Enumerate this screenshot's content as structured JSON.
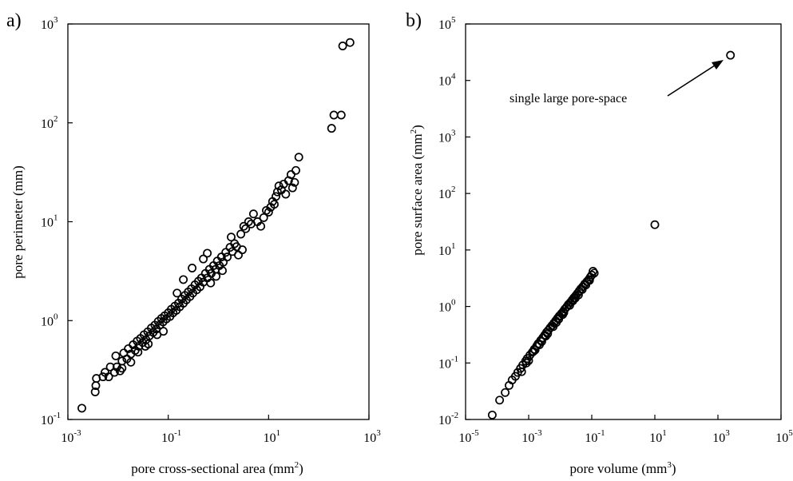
{
  "chart_data": [
    {
      "panel_label": "a)",
      "type": "scatter",
      "xlabel": "pore cross-sectional area (mm",
      "xlabel_sup": "2",
      "xlabel_tail": ")",
      "ylabel": "pore perimeter  (mm)",
      "xscale": "log",
      "yscale": "log",
      "xlim": [
        0.001,
        1000
      ],
      "ylim": [
        0.1,
        1000
      ],
      "x_ticks": [
        {
          "base": "10",
          "exp": "-3",
          "value": 0.001
        },
        {
          "base": "10",
          "exp": "-1",
          "value": 0.1
        },
        {
          "base": "10",
          "exp": "1",
          "value": 10
        },
        {
          "base": "10",
          "exp": "3",
          "value": 1000
        }
      ],
      "y_ticks": [
        {
          "base": "10",
          "exp": "-1",
          "value": 0.1
        },
        {
          "base": "10",
          "exp": "0",
          "value": 1
        },
        {
          "base": "10",
          "exp": "1",
          "value": 10
        },
        {
          "base": "10",
          "exp": "2",
          "value": 100
        },
        {
          "base": "10",
          "exp": "3",
          "value": 1000
        }
      ],
      "marker": "open-circle",
      "grid": false,
      "legend": "none",
      "points": [
        [
          0.0019,
          0.13
        ],
        [
          0.0035,
          0.19
        ],
        [
          0.0036,
          0.22
        ],
        [
          0.0037,
          0.26
        ],
        [
          0.005,
          0.27
        ],
        [
          0.0055,
          0.3
        ],
        [
          0.0065,
          0.27
        ],
        [
          0.007,
          0.34
        ],
        [
          0.0085,
          0.3
        ],
        [
          0.0095,
          0.34
        ],
        [
          0.011,
          0.31
        ],
        [
          0.012,
          0.39
        ],
        [
          0.009,
          0.44
        ],
        [
          0.013,
          0.47
        ],
        [
          0.015,
          0.41
        ],
        [
          0.016,
          0.52
        ],
        [
          0.018,
          0.46
        ],
        [
          0.02,
          0.57
        ],
        [
          0.022,
          0.5
        ],
        [
          0.024,
          0.62
        ],
        [
          0.026,
          0.55
        ],
        [
          0.028,
          0.66
        ],
        [
          0.031,
          0.6
        ],
        [
          0.033,
          0.72
        ],
        [
          0.036,
          0.64
        ],
        [
          0.039,
          0.77
        ],
        [
          0.042,
          0.7
        ],
        [
          0.046,
          0.84
        ],
        [
          0.05,
          0.76
        ],
        [
          0.054,
          0.9
        ],
        [
          0.058,
          0.82
        ],
        [
          0.063,
          0.98
        ],
        [
          0.068,
          0.9
        ],
        [
          0.073,
          1.05
        ],
        [
          0.079,
          0.97
        ],
        [
          0.085,
          1.12
        ],
        [
          0.092,
          1.04
        ],
        [
          0.1,
          1.2
        ],
        [
          0.108,
          1.1
        ],
        [
          0.115,
          1.3
        ],
        [
          0.125,
          1.2
        ],
        [
          0.135,
          1.4
        ],
        [
          0.145,
          1.27
        ],
        [
          0.16,
          1.5
        ],
        [
          0.17,
          1.38
        ],
        [
          0.185,
          1.65
        ],
        [
          0.2,
          1.5
        ],
        [
          0.215,
          1.8
        ],
        [
          0.23,
          1.62
        ],
        [
          0.25,
          1.95
        ],
        [
          0.27,
          1.75
        ],
        [
          0.29,
          2.1
        ],
        [
          0.31,
          1.9
        ],
        [
          0.34,
          2.3
        ],
        [
          0.37,
          2.05
        ],
        [
          0.4,
          2.5
        ],
        [
          0.43,
          2.2
        ],
        [
          0.46,
          2.7
        ],
        [
          0.5,
          2.45
        ],
        [
          0.55,
          3.0
        ],
        [
          0.6,
          2.7
        ],
        [
          0.66,
          3.3
        ],
        [
          0.72,
          3.0
        ],
        [
          0.8,
          3.6
        ],
        [
          0.88,
          3.3
        ],
        [
          0.95,
          4.0
        ],
        [
          1.05,
          3.6
        ],
        [
          1.15,
          4.4
        ],
        [
          1.25,
          3.9
        ],
        [
          1.4,
          4.9
        ],
        [
          1.5,
          4.4
        ],
        [
          1.7,
          5.5
        ],
        [
          1.9,
          5.0
        ],
        [
          2.1,
          6.0
        ],
        [
          2.3,
          5.6
        ],
        [
          0.5,
          4.2
        ],
        [
          0.6,
          4.8
        ],
        [
          1.8,
          7.0
        ],
        [
          2.8,
          7.5
        ],
        [
          3.2,
          9.0
        ],
        [
          3.5,
          8.5
        ],
        [
          4.0,
          10
        ],
        [
          4.5,
          9.5
        ],
        [
          5.0,
          12
        ],
        [
          6.0,
          10
        ],
        [
          7.0,
          9.0
        ],
        [
          8.0,
          11
        ],
        [
          9.0,
          13
        ],
        [
          10,
          12.5
        ],
        [
          11,
          14
        ],
        [
          12,
          16
        ],
        [
          13,
          15
        ],
        [
          14,
          18
        ],
        [
          15,
          20
        ],
        [
          16,
          23
        ],
        [
          18,
          21
        ],
        [
          20,
          24
        ],
        [
          22,
          19
        ],
        [
          25,
          26
        ],
        [
          28,
          30
        ],
        [
          33,
          25
        ],
        [
          35,
          33
        ],
        [
          40,
          45
        ],
        [
          30,
          22
        ],
        [
          0.2,
          2.6
        ],
        [
          0.3,
          3.4
        ],
        [
          0.15,
          1.9
        ],
        [
          0.08,
          0.78
        ],
        [
          0.04,
          0.58
        ],
        [
          0.025,
          0.48
        ],
        [
          0.06,
          0.72
        ],
        [
          0.012,
          0.33
        ],
        [
          0.018,
          0.38
        ],
        [
          0.035,
          0.55
        ],
        [
          0.7,
          2.4
        ],
        [
          0.9,
          2.8
        ],
        [
          1.2,
          3.2
        ],
        [
          2.5,
          4.6
        ],
        [
          3.0,
          5.2
        ],
        [
          300,
          600
        ],
        [
          420,
          650
        ],
        [
          180,
          88
        ],
        [
          200,
          120
        ],
        [
          280,
          120
        ]
      ]
    },
    {
      "panel_label": "b)",
      "type": "scatter",
      "xlabel": "pore volume (mm",
      "xlabel_sup": "3",
      "xlabel_tail": ")",
      "ylabel": "pore surface area (mm",
      "ylabel_sup": "2",
      "ylabel_tail": ")",
      "xscale": "log",
      "yscale": "log",
      "xlim": [
        1e-05,
        100000
      ],
      "ylim": [
        0.01,
        100000
      ],
      "x_ticks": [
        {
          "base": "10",
          "exp": "-5",
          "value": 1e-05
        },
        {
          "base": "10",
          "exp": "-3",
          "value": 0.001
        },
        {
          "base": "10",
          "exp": "-1",
          "value": 0.1
        },
        {
          "base": "10",
          "exp": "1",
          "value": 10
        },
        {
          "base": "10",
          "exp": "3",
          "value": 1000
        },
        {
          "base": "10",
          "exp": "5",
          "value": 100000
        }
      ],
      "y_ticks": [
        {
          "base": "10",
          "exp": "-2",
          "value": 0.01
        },
        {
          "base": "10",
          "exp": "-1",
          "value": 0.1
        },
        {
          "base": "10",
          "exp": "0",
          "value": 1
        },
        {
          "base": "10",
          "exp": "1",
          "value": 10
        },
        {
          "base": "10",
          "exp": "2",
          "value": 100
        },
        {
          "base": "10",
          "exp": "3",
          "value": 1000
        },
        {
          "base": "10",
          "exp": "4",
          "value": 10000
        },
        {
          "base": "10",
          "exp": "5",
          "value": 100000
        }
      ],
      "marker": "open-circle",
      "grid": false,
      "legend": "none",
      "annotation": {
        "text": "single large pore-space",
        "points_to": [
          2500,
          28000
        ]
      },
      "points": [
        [
          7e-05,
          0.012
        ],
        [
          0.00012,
          0.022
        ],
        [
          0.00018,
          0.03
        ],
        [
          0.00024,
          0.04
        ],
        [
          0.0003,
          0.05
        ],
        [
          0.00038,
          0.058
        ],
        [
          0.00045,
          0.068
        ],
        [
          0.00055,
          0.08
        ],
        [
          0.00065,
          0.092
        ],
        [
          0.0008,
          0.108
        ],
        [
          0.0009,
          0.12
        ],
        [
          0.0011,
          0.138
        ],
        [
          0.0013,
          0.155
        ],
        [
          0.0015,
          0.175
        ],
        [
          0.0018,
          0.2
        ],
        [
          0.002,
          0.22
        ],
        [
          0.0024,
          0.25
        ],
        [
          0.0028,
          0.28
        ],
        [
          0.0032,
          0.31
        ],
        [
          0.0037,
          0.35
        ],
        [
          0.0042,
          0.38
        ],
        [
          0.0048,
          0.42
        ],
        [
          0.0055,
          0.46
        ],
        [
          0.0063,
          0.51
        ],
        [
          0.0072,
          0.56
        ],
        [
          0.0082,
          0.62
        ],
        [
          0.0094,
          0.68
        ],
        [
          0.011,
          0.75
        ],
        [
          0.0125,
          0.82
        ],
        [
          0.014,
          0.9
        ],
        [
          0.016,
          0.98
        ],
        [
          0.018,
          1.08
        ],
        [
          0.021,
          1.18
        ],
        [
          0.024,
          1.3
        ],
        [
          0.027,
          1.42
        ],
        [
          0.031,
          1.55
        ],
        [
          0.035,
          1.7
        ],
        [
          0.04,
          1.88
        ],
        [
          0.045,
          2.05
        ],
        [
          0.052,
          2.25
        ],
        [
          0.06,
          2.5
        ],
        [
          0.07,
          2.75
        ],
        [
          0.08,
          3.0
        ],
        [
          0.09,
          3.3
        ],
        [
          0.1,
          3.6
        ],
        [
          0.11,
          4.2
        ],
        [
          0.12,
          3.9
        ],
        [
          0.0006,
          0.07
        ],
        [
          0.001,
          0.11
        ],
        [
          0.0016,
          0.17
        ],
        [
          0.0026,
          0.24
        ],
        [
          0.004,
          0.33
        ],
        [
          0.006,
          0.44
        ],
        [
          0.009,
          0.6
        ],
        [
          0.013,
          0.78
        ],
        [
          0.02,
          1.05
        ],
        [
          0.03,
          1.4
        ],
        [
          0.05,
          2.0
        ],
        [
          0.0075,
          0.52
        ],
        [
          0.012,
          0.72
        ],
        [
          0.0035,
          0.3
        ],
        [
          0.0022,
          0.21
        ],
        [
          0.0014,
          0.16
        ],
        [
          0.00085,
          0.1
        ],
        [
          0.025,
          1.25
        ],
        [
          0.038,
          1.6
        ],
        [
          0.065,
          2.4
        ],
        [
          0.085,
          2.9
        ],
        [
          10,
          28
        ],
        [
          2500,
          28000
        ]
      ]
    }
  ]
}
